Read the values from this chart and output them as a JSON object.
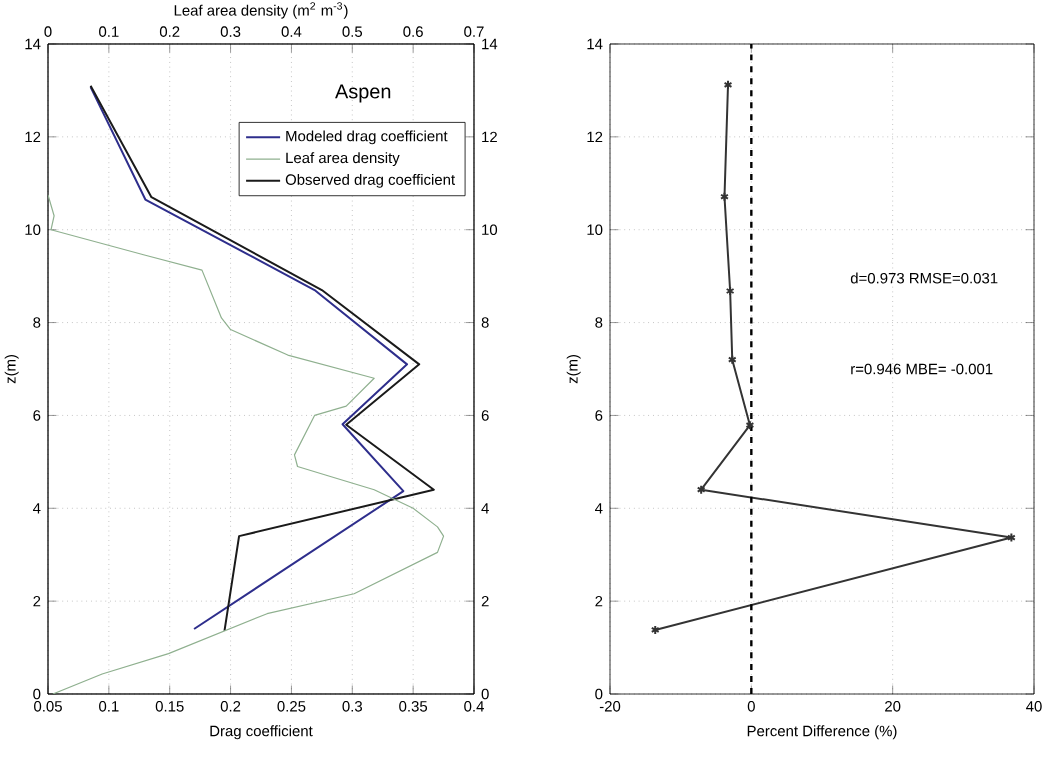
{
  "chart_data": [
    {
      "type": "line",
      "title": "Aspen",
      "xlabel": "Drag coefficient",
      "ylabel": "z(m)",
      "x2label": "Leaf area density (m$^{2}$ m$^{-3}$)",
      "xlim": [
        0.05,
        0.4
      ],
      "xticks": [
        0.05,
        0.1,
        0.15,
        0.2,
        0.25,
        0.3,
        0.35,
        0.4
      ],
      "x2lim": [
        0,
        0.7
      ],
      "x2ticks": [
        0,
        0.1,
        0.2,
        0.3,
        0.4,
        0.5,
        0.6,
        0.7
      ],
      "ylim": [
        0,
        14
      ],
      "yticks": [
        0,
        2,
        4,
        6,
        8,
        10,
        12,
        14
      ],
      "y2lim": [
        0,
        14
      ],
      "y2ticks": [
        0,
        2,
        4,
        6,
        8,
        10,
        12,
        14
      ],
      "grid": true,
      "legend": "top right",
      "series": [
        {
          "name": "Modeled drag coefficient",
          "color": "#2e2e8c",
          "x": [
            0.085,
            0.13,
            0.269,
            0.345,
            0.292,
            0.342,
            0.17
          ],
          "values": [
            13.07,
            10.65,
            8.7,
            7.1,
            5.81,
            4.37,
            1.4
          ]
        },
        {
          "name": "Leaf area density",
          "color": "#8fb08f",
          "axis": "x2",
          "x": [
            0,
            0.01,
            0.005,
            0.16,
            0.253,
            0.285,
            0.3,
            0.394,
            0.536,
            0.49,
            0.438,
            0.405,
            0.41,
            0.46,
            0.536,
            0.6,
            0.64,
            0.65,
            0.64,
            0.503,
            0.36,
            0.198,
            0.089,
            0.008
          ],
          "values": [
            10.75,
            10.3,
            10.0,
            9.45,
            9.13,
            8.1,
            7.85,
            7.3,
            6.8,
            6.2,
            6.0,
            5.15,
            4.9,
            4.7,
            4.4,
            4.0,
            3.6,
            3.4,
            3.05,
            2.16,
            1.73,
            0.87,
            0.43,
            0
          ]
        },
        {
          "name": "Observed drag coefficient",
          "color": "#1a1a1a",
          "x": [
            0.085,
            0.135,
            0.275,
            0.355,
            0.295,
            0.367,
            0.207,
            0.195
          ],
          "values": [
            13.1,
            10.7,
            8.7,
            7.1,
            5.8,
            4.4,
            3.4,
            1.36
          ]
        }
      ]
    },
    {
      "type": "line",
      "xlabel": "Percent Difference (%)",
      "ylabel": "z(m)",
      "xlim": [
        -20,
        40
      ],
      "xticks": [
        -20,
        0,
        20,
        40
      ],
      "ylim": [
        0,
        14
      ],
      "yticks": [
        0,
        2,
        4,
        6,
        8,
        10,
        12,
        14
      ],
      "grid": true,
      "marker": "cross",
      "ref_lines": [
        {
          "axis": "x",
          "value": 0,
          "color": "#000000",
          "line_style": "dashed"
        }
      ],
      "annotations": [
        "d=0.973 RMSE=0.031",
        "r=0.946  MBE= -0.001"
      ],
      "series": [
        {
          "color": "#333333",
          "x": [
            -3.3,
            -3.8,
            -3.0,
            -2.7,
            -0.2,
            -7.1,
            36.8,
            -13.6
          ],
          "values": [
            13.12,
            10.71,
            8.68,
            7.2,
            5.79,
            4.4,
            3.37,
            1.38
          ]
        }
      ]
    }
  ]
}
